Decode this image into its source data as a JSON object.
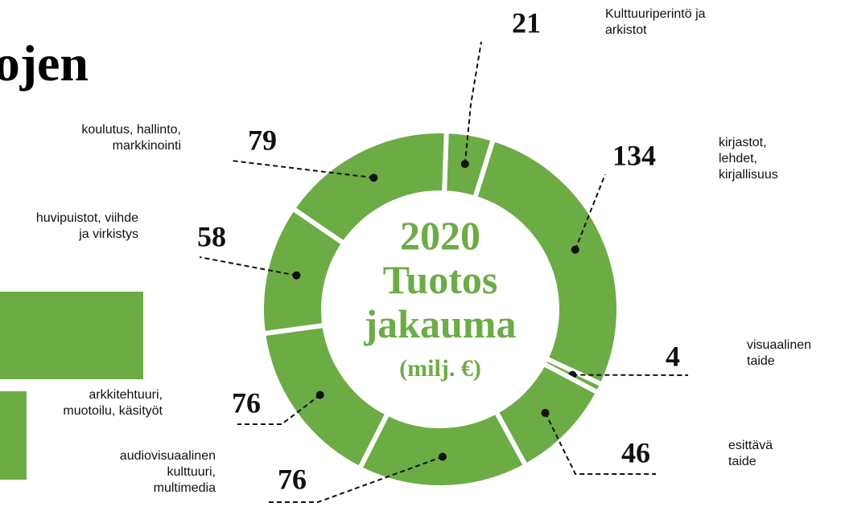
{
  "title": "ojen",
  "chart_data": {
    "type": "donut",
    "center_text": [
      "2020",
      "Tuotos",
      "jakauma"
    ],
    "unit": "(milj. €)",
    "color": "#6cac45",
    "categories": [
      "Kulttuuriperintö ja\narkistot",
      "kirjastot,\nlehdet,\nkirjallisuus",
      "visuaalinen\ntaide",
      "esittävä\ntaide",
      "audiovisuaalinen\nkulttuuri,\nmultimedia",
      "arkkitehtuuri,\nmuotoilu, käsityöt",
      "huvipuistot, viihde\nja virkistys",
      "koulutus, hallinto,\nmarkkinointi"
    ],
    "values": [
      21,
      134,
      4,
      46,
      76,
      76,
      58,
      79
    ]
  }
}
